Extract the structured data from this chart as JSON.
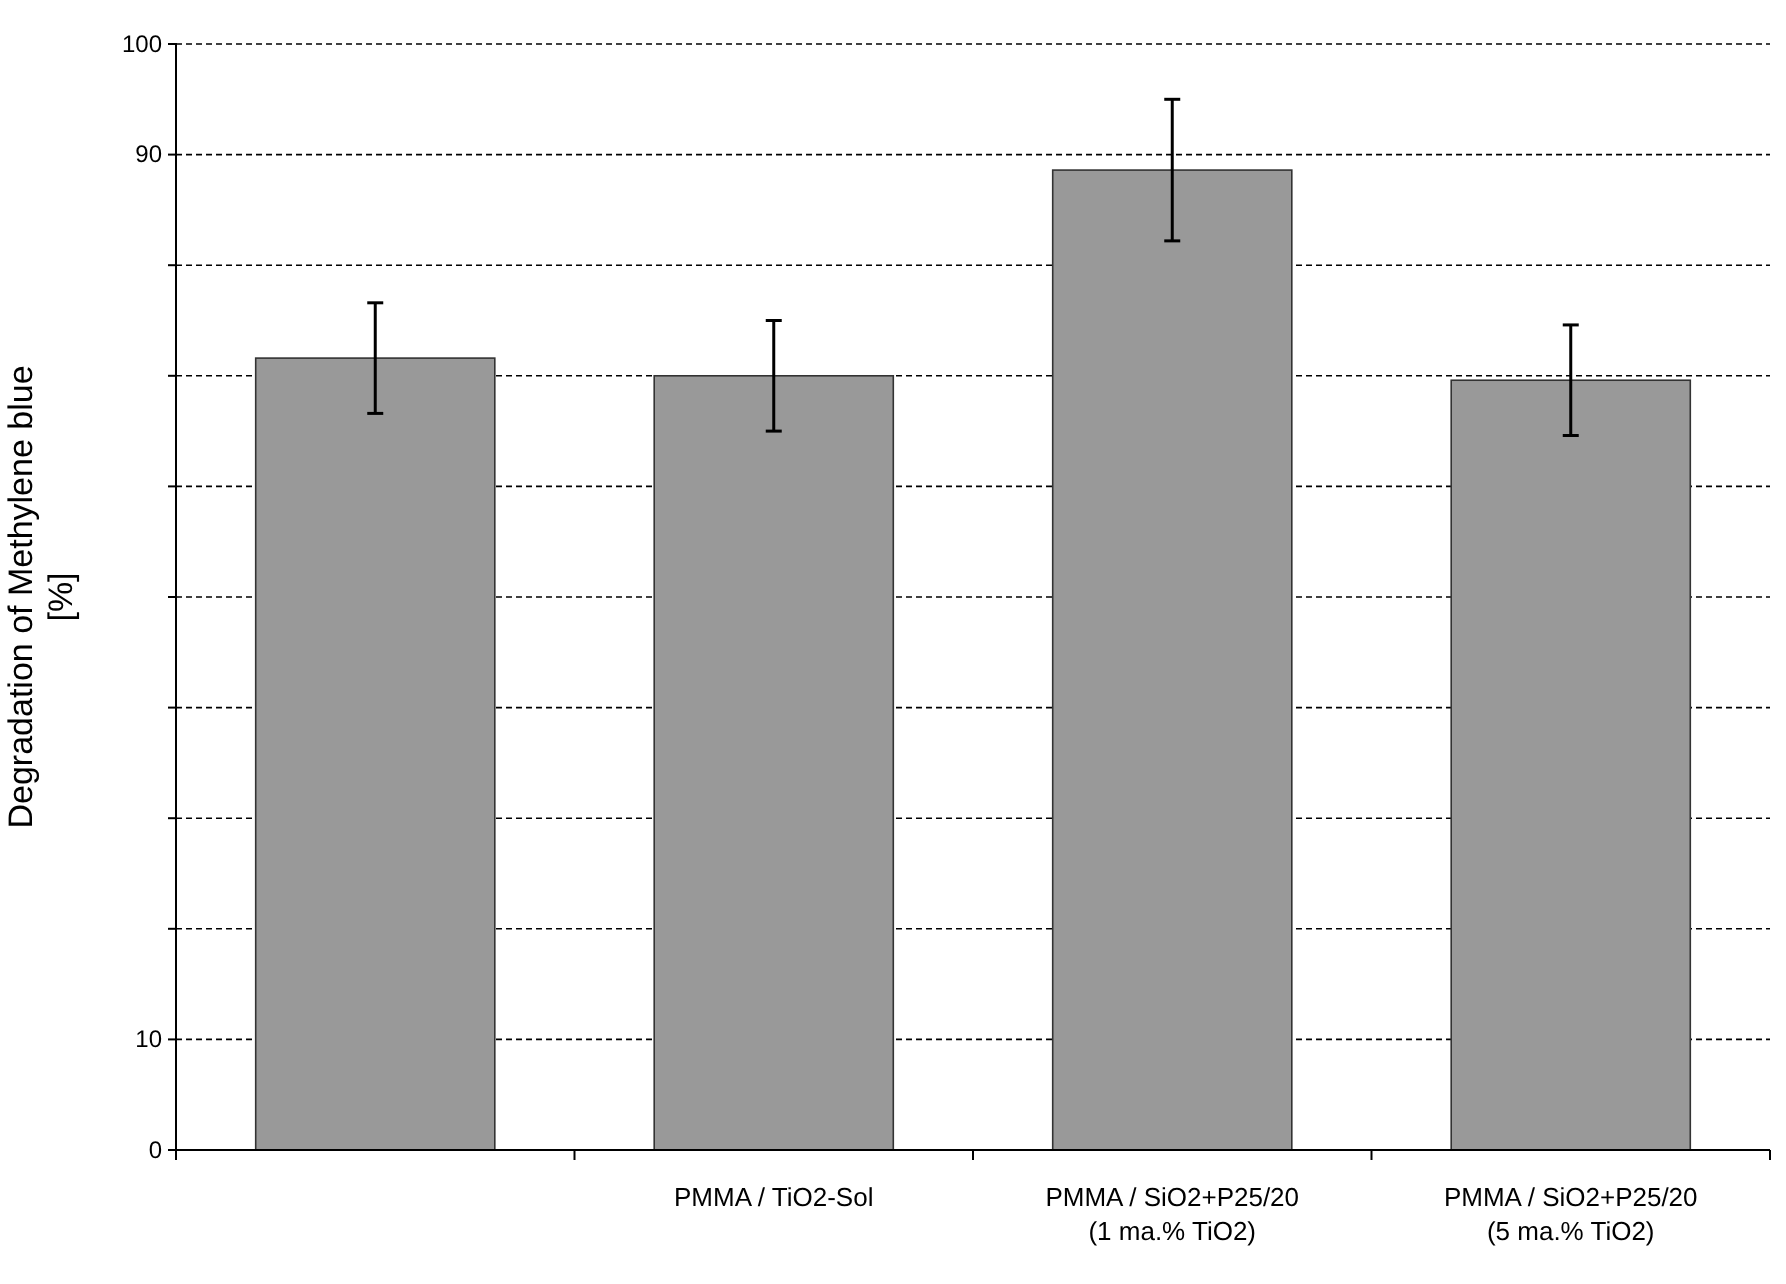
{
  "chart_data": {
    "type": "bar",
    "ylabel": "Degradation of  Methylene blue\n[%]",
    "categories": [
      null,
      "PMMA / TiO2-Sol",
      "PMMA / SiO2+P25/20\n(1 ma.% TiO2)",
      "PMMA / SiO2+P25/20\n(5 ma.% TiO2)"
    ],
    "values": [
      71.6,
      70.0,
      88.6,
      69.6
    ],
    "errors": [
      5,
      5,
      6.4,
      5
    ],
    "color": "#999999",
    "ylim": [
      0,
      100
    ],
    "yticks": [
      0,
      10,
      {
        "value": 20,
        "label": null
      },
      {
        "value": 30,
        "label": null
      },
      {
        "value": 40,
        "label": null
      },
      {
        "value": 50,
        "label": null
      },
      {
        "value": 60,
        "label": null
      },
      {
        "value": 70,
        "label": null
      },
      {
        "value": 80,
        "label": null
      },
      90,
      100
    ],
    "grid": "y"
  }
}
